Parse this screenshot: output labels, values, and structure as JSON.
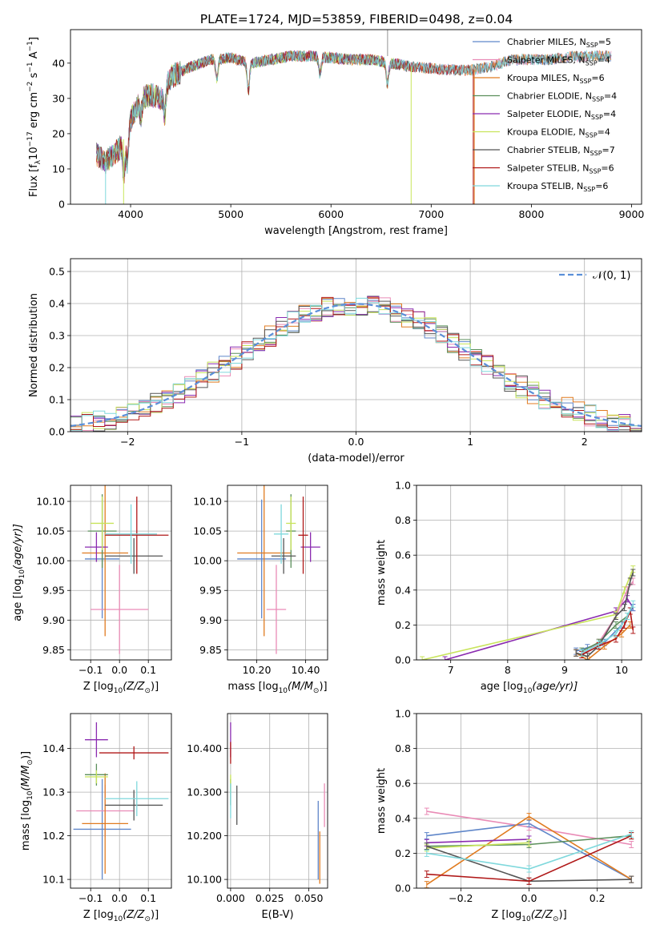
{
  "figure_title": "PLATE=1724, MJD=53859, FIBERID=0498, z=0.04",
  "colors": {
    "chabrier_miles": "#5f86c9",
    "salpeter_miles": "#e98bb6",
    "kroupa_miles": "#e07b20",
    "chabrier_elodie": "#5b8f5b",
    "salpeter_elodie": "#8a2bb0",
    "kroupa_elodie": "#c8e45a",
    "chabrier_stelib": "#555555",
    "salpeter_stelib": "#b01818",
    "kroupa_stelib": "#7fd8dc",
    "gaussian": "#5b8fd8",
    "grid": "#b0b0b0"
  },
  "chart_data": [
    {
      "id": "spectrum",
      "type": "line",
      "xlabel": "wavelength [Angstrom, rest frame]",
      "ylabel": "Flux [f",
      "ylabel_sub": "λ",
      "ylabel_rest": "10",
      "ylabel_sup1": "−17",
      "ylabel_mid": " erg cm",
      "ylabel_sup2": "−2",
      "ylabel_mid2": " s",
      "ylabel_sup3": "−1",
      "ylabel_end": " A",
      "ylabel_sup4": "−1",
      "ylabel_close": "]",
      "xlim": [
        3400,
        9100
      ],
      "ylim": [
        0,
        49.5
      ],
      "xticks": [
        4000,
        5000,
        6000,
        7000,
        8000,
        9000
      ],
      "yticks": [
        0,
        10,
        20,
        30,
        40
      ],
      "continuum": [
        [
          3660,
          14
        ],
        [
          3750,
          12
        ],
        [
          3900,
          16
        ],
        [
          4000,
          24
        ],
        [
          4100,
          30
        ],
        [
          4200,
          31
        ],
        [
          4300,
          30
        ],
        [
          4400,
          36
        ],
        [
          4600,
          39
        ],
        [
          4800,
          41
        ],
        [
          5000,
          41.5
        ],
        [
          5200,
          40
        ],
        [
          5400,
          41
        ],
        [
          5600,
          42
        ],
        [
          5800,
          42
        ],
        [
          6000,
          41.5
        ],
        [
          6200,
          41
        ],
        [
          6400,
          41
        ],
        [
          6600,
          40
        ],
        [
          6800,
          39
        ],
        [
          7000,
          38.5
        ],
        [
          7200,
          38
        ],
        [
          7400,
          38
        ],
        [
          7600,
          39
        ],
        [
          7700,
          40
        ],
        [
          7800,
          41
        ],
        [
          8000,
          41
        ],
        [
          8200,
          41
        ],
        [
          8400,
          42
        ],
        [
          8600,
          42
        ],
        [
          8800,
          42
        ]
      ],
      "legend": [
        {
          "label": "Chabrier MILES, N",
          "sub": "SSP",
          "suffix": "=5",
          "color_key": "chabrier_miles"
        },
        {
          "label": "Salpeter MILES, N",
          "sub": "SSP",
          "suffix": "=4",
          "color_key": "salpeter_miles"
        },
        {
          "label": "Kroupa MILES, N",
          "sub": "SSP",
          "suffix": "=6",
          "color_key": "kroupa_miles"
        },
        {
          "label": "Chabrier ELODIE, N",
          "sub": "SSP",
          "suffix": "=4",
          "color_key": "chabrier_elodie"
        },
        {
          "label": "Salpeter ELODIE, N",
          "sub": "SSP",
          "suffix": "=4",
          "color_key": "salpeter_elodie"
        },
        {
          "label": "Kroupa ELODIE, N",
          "sub": "SSP",
          "suffix": "=4",
          "color_key": "kroupa_elodie"
        },
        {
          "label": "Chabrier STELIB, N",
          "sub": "SSP",
          "suffix": "=7",
          "color_key": "chabrier_stelib"
        },
        {
          "label": "Salpeter STELIB, N",
          "sub": "SSP",
          "suffix": "=6",
          "color_key": "salpeter_stelib"
        },
        {
          "label": "Kroupa STELIB, N",
          "sub": "SSP",
          "suffix": "=6",
          "color_key": "kroupa_stelib"
        }
      ]
    },
    {
      "id": "residuals",
      "type": "line",
      "xlabel": "(data-model)/error",
      "ylabel": "Normed distribution",
      "xlim": [
        -2.5,
        2.5
      ],
      "ylim": [
        0,
        0.54
      ],
      "xticks": [
        -2,
        -1,
        0,
        1,
        2
      ],
      "yticks": [
        0.0,
        0.1,
        0.2,
        0.3,
        0.4,
        0.5
      ],
      "bin_width": 0.1,
      "legend": [
        {
          "label": "𝒩(0, 1)",
          "color_key": "gaussian"
        }
      ]
    },
    {
      "id": "age_vs_Z",
      "type": "scatter",
      "xlabel": "Z [log",
      "xlabel_sub": "10",
      "xlabel_rest": "(Z/Z",
      "xlabel_sub2": "⊙",
      "xlabel_close": ")]",
      "ylabel": "age  [log",
      "ylabel_sub": "10",
      "ylabel_rest": "(age/yr)]",
      "xlim": [
        -0.17,
        0.18
      ],
      "ylim": [
        9.833,
        10.127
      ],
      "xticks": [
        -0.1,
        0.0,
        0.1
      ],
      "yticks": [
        9.85,
        9.9,
        9.95,
        10.0,
        10.05,
        10.1
      ],
      "points": [
        {
          "color_key": "chabrier_miles",
          "x": -0.06,
          "y": 10.003,
          "xerr": 0.06,
          "yerr": 0.1
        },
        {
          "color_key": "salpeter_miles",
          "x": 0.0,
          "y": 9.918,
          "xerr": 0.1,
          "yerr": 0.075
        },
        {
          "color_key": "kroupa_miles",
          "x": -0.05,
          "y": 10.013,
          "xerr": 0.08,
          "yerr": 0.14
        },
        {
          "color_key": "chabrier_elodie",
          "x": -0.06,
          "y": 10.05,
          "xerr": 0.05,
          "yerr": 0.062
        },
        {
          "color_key": "salpeter_elodie",
          "x": -0.08,
          "y": 10.023,
          "xerr": 0.04,
          "yerr": 0.025
        },
        {
          "color_key": "kroupa_elodie",
          "x": -0.06,
          "y": 10.063,
          "xerr": 0.04,
          "yerr": 0.045
        },
        {
          "color_key": "chabrier_stelib",
          "x": 0.05,
          "y": 10.008,
          "xerr": 0.1,
          "yerr": 0.03
        },
        {
          "color_key": "salpeter_stelib",
          "x": 0.06,
          "y": 10.043,
          "xerr": 0.11,
          "yerr": 0.065
        },
        {
          "color_key": "kroupa_stelib",
          "x": 0.04,
          "y": 10.045,
          "xerr": 0.09,
          "yerr": 0.05
        }
      ]
    },
    {
      "id": "age_vs_mass",
      "type": "scatter",
      "xlabel": "mass [log",
      "xlabel_sub": "10",
      "xlabel_rest": "(M/M",
      "xlabel_sub2": "⊙",
      "xlabel_close": ")]",
      "ylabel": "",
      "xlim": [
        10.08,
        10.49
      ],
      "ylim": [
        9.833,
        10.127
      ],
      "xticks": [
        10.2,
        10.4
      ],
      "yticks": [
        9.85,
        9.9,
        9.95,
        10.0,
        10.05,
        10.1
      ],
      "points": [
        {
          "color_key": "chabrier_miles",
          "x": 10.22,
          "y": 10.003,
          "xerr": 0.1,
          "yerr": 0.1
        },
        {
          "color_key": "salpeter_miles",
          "x": 10.28,
          "y": 9.918,
          "xerr": 0.04,
          "yerr": 0.075
        },
        {
          "color_key": "kroupa_miles",
          "x": 10.23,
          "y": 10.013,
          "xerr": 0.11,
          "yerr": 0.14
        },
        {
          "color_key": "chabrier_elodie",
          "x": 10.34,
          "y": 10.05,
          "xerr": 0.02,
          "yerr": 0.062
        },
        {
          "color_key": "salpeter_elodie",
          "x": 10.42,
          "y": 10.023,
          "xerr": 0.04,
          "yerr": 0.025
        },
        {
          "color_key": "kroupa_elodie",
          "x": 10.34,
          "y": 10.063,
          "xerr": 0.02,
          "yerr": 0.045
        },
        {
          "color_key": "chabrier_stelib",
          "x": 10.31,
          "y": 10.008,
          "xerr": 0.05,
          "yerr": 0.03
        },
        {
          "color_key": "salpeter_stelib",
          "x": 10.39,
          "y": 10.043,
          "xerr": 0.02,
          "yerr": 0.065
        },
        {
          "color_key": "kroupa_stelib",
          "x": 10.3,
          "y": 10.045,
          "xerr": 0.03,
          "yerr": 0.05
        }
      ]
    },
    {
      "id": "weights_vs_age",
      "type": "line",
      "xlabel": "age  [log",
      "xlabel_sub": "10",
      "xlabel_rest": "(age/yr)]",
      "ylabel": "mass weight",
      "xlim": [
        6.4,
        10.35
      ],
      "ylim": [
        0,
        1
      ],
      "xticks": [
        7,
        8,
        9,
        10
      ],
      "yticks": [
        0.0,
        0.2,
        0.4,
        0.6,
        0.8,
        1.0
      ],
      "series": [
        {
          "color_key": "salpeter_elodie",
          "x": [
            6.9,
            9.9,
            10.1,
            10.2
          ],
          "y": [
            0.0,
            0.28,
            0.35,
            0.3
          ]
        },
        {
          "color_key": "kroupa_elodie",
          "x": [
            6.5,
            9.9,
            10.05,
            10.2
          ],
          "y": [
            0.0,
            0.26,
            0.4,
            0.52
          ]
        },
        {
          "color_key": "chabrier_miles",
          "x": [
            9.2,
            9.4,
            9.7,
            10.0,
            10.2
          ],
          "y": [
            0.05,
            0.07,
            0.1,
            0.2,
            0.3
          ]
        },
        {
          "color_key": "salpeter_miles",
          "x": [
            9.3,
            9.6,
            9.9,
            10.1,
            10.2
          ],
          "y": [
            0.03,
            0.1,
            0.25,
            0.4,
            0.45
          ]
        },
        {
          "color_key": "kroupa_miles",
          "x": [
            9.2,
            9.4,
            9.7,
            10.0,
            10.15
          ],
          "y": [
            0.04,
            0.0,
            0.08,
            0.15,
            0.2
          ]
        },
        {
          "color_key": "chabrier_elodie",
          "x": [
            9.3,
            9.6,
            9.9,
            10.1
          ],
          "y": [
            0.05,
            0.1,
            0.2,
            0.25
          ]
        },
        {
          "color_key": "chabrier_stelib",
          "x": [
            9.2,
            9.4,
            9.6,
            9.9,
            10.05,
            10.15,
            10.2
          ],
          "y": [
            0.04,
            0.02,
            0.08,
            0.25,
            0.3,
            0.45,
            0.5
          ]
        },
        {
          "color_key": "salpeter_stelib",
          "x": [
            9.3,
            9.6,
            9.9,
            10.05,
            10.15,
            10.2
          ],
          "y": [
            0.03,
            0.08,
            0.12,
            0.2,
            0.28,
            0.17
          ]
        },
        {
          "color_key": "kroupa_stelib",
          "x": [
            9.3,
            9.6,
            9.9,
            10.1,
            10.2
          ],
          "y": [
            0.04,
            0.09,
            0.15,
            0.25,
            0.32
          ]
        }
      ]
    },
    {
      "id": "mass_vs_Z",
      "type": "scatter",
      "xlabel": "Z [log",
      "xlabel_sub": "10",
      "xlabel_rest": "(Z/Z",
      "xlabel_sub2": "⊙",
      "xlabel_close": ")]",
      "ylabel": "mass [log",
      "ylabel_sub": "10",
      "ylabel_rest": "(M/M",
      "ylabel_sub2": "⊙",
      "ylabel_close": ")]",
      "xlim": [
        -0.17,
        0.18
      ],
      "ylim": [
        10.08,
        10.48
      ],
      "xticks": [
        -0.1,
        0.0,
        0.1
      ],
      "yticks": [
        10.1,
        10.2,
        10.3,
        10.4
      ],
      "points": [
        {
          "color_key": "chabrier_miles",
          "x": -0.06,
          "y": 10.215,
          "xerr": 0.1,
          "yerr": 0.115
        },
        {
          "color_key": "salpeter_miles",
          "x": -0.05,
          "y": 10.257,
          "xerr": 0.1,
          "yerr": 0.06
        },
        {
          "color_key": "kroupa_miles",
          "x": -0.05,
          "y": 10.228,
          "xerr": 0.08,
          "yerr": 0.115
        },
        {
          "color_key": "chabrier_elodie",
          "x": -0.08,
          "y": 10.34,
          "xerr": 0.04,
          "yerr": 0.025
        },
        {
          "color_key": "salpeter_elodie",
          "x": -0.08,
          "y": 10.42,
          "xerr": 0.04,
          "yerr": 0.04
        },
        {
          "color_key": "kroupa_elodie",
          "x": -0.08,
          "y": 10.335,
          "xerr": 0.04,
          "yerr": 0.015
        },
        {
          "color_key": "chabrier_stelib",
          "x": 0.05,
          "y": 10.27,
          "xerr": 0.1,
          "yerr": 0.035
        },
        {
          "color_key": "salpeter_stelib",
          "x": 0.05,
          "y": 10.39,
          "xerr": 0.12,
          "yerr": 0.015
        },
        {
          "color_key": "kroupa_stelib",
          "x": 0.06,
          "y": 10.285,
          "xerr": 0.11,
          "yerr": 0.04
        }
      ]
    },
    {
      "id": "mass_vs_ebv",
      "type": "scatter",
      "xlabel": "E(B-V)",
      "ylabel": "",
      "xlim": [
        -0.002,
        0.062
      ],
      "ylim": [
        10.08,
        10.48
      ],
      "xticks": [
        0.0,
        0.025,
        0.05
      ],
      "yticks": [
        10.1,
        10.2,
        10.3,
        10.4
      ],
      "points": [
        {
          "color_key": "chabrier_miles",
          "x": 0.056,
          "y": 10.19,
          "xerr": 0.0,
          "yerr": 0.09
        },
        {
          "color_key": "salpeter_miles",
          "x": 0.06,
          "y": 10.27,
          "xerr": 0.0,
          "yerr": 0.05
        },
        {
          "color_key": "kroupa_miles",
          "x": 0.057,
          "y": 10.15,
          "xerr": 0.0,
          "yerr": 0.06
        },
        {
          "color_key": "chabrier_elodie",
          "x": 0.0,
          "y": 10.3,
          "xerr": 0.0,
          "yerr": 0.03
        },
        {
          "color_key": "salpeter_elodie",
          "x": 0.0,
          "y": 10.42,
          "xerr": 0.0,
          "yerr": 0.04
        },
        {
          "color_key": "kroupa_elodie",
          "x": 0.0,
          "y": 10.32,
          "xerr": 0.0,
          "yerr": 0.02
        },
        {
          "color_key": "chabrier_stelib",
          "x": 0.004,
          "y": 10.27,
          "xerr": 0.0,
          "yerr": 0.045
        },
        {
          "color_key": "salpeter_stelib",
          "x": 0.0,
          "y": 10.39,
          "xerr": 0.0,
          "yerr": 0.025
        },
        {
          "color_key": "kroupa_stelib",
          "x": 0.0,
          "y": 10.28,
          "xerr": 0.0,
          "yerr": 0.04
        }
      ]
    },
    {
      "id": "weights_vs_Z",
      "type": "line",
      "xlabel": "Z [log",
      "xlabel_sub": "10",
      "xlabel_rest": "(Z/Z",
      "xlabel_sub2": "⊙",
      "xlabel_close": ")]",
      "ylabel": "mass weight",
      "xlim": [
        -0.33,
        0.33
      ],
      "ylim": [
        0,
        1
      ],
      "xticks": [
        -0.2,
        0.0,
        0.2
      ],
      "yticks": [
        0.0,
        0.2,
        0.4,
        0.6,
        0.8,
        1.0
      ],
      "series": [
        {
          "color_key": "salpeter_miles",
          "x": [
            -0.3,
            0.0,
            0.3
          ],
          "y": [
            0.44,
            0.35,
            0.25
          ]
        },
        {
          "color_key": "chabrier_miles",
          "x": [
            -0.3,
            0.0,
            0.3
          ],
          "y": [
            0.3,
            0.37,
            0.05
          ]
        },
        {
          "color_key": "kroupa_miles",
          "x": [
            -0.3,
            0.0,
            0.3
          ],
          "y": [
            0.02,
            0.41,
            0.05
          ]
        },
        {
          "color_key": "chabrier_elodie",
          "x": [
            -0.3,
            0.0,
            0.3
          ],
          "y": [
            0.24,
            0.25,
            0.3
          ]
        },
        {
          "color_key": "salpeter_elodie",
          "x": [
            -0.3,
            0.0
          ],
          "y": [
            0.26,
            0.28
          ]
        },
        {
          "color_key": "kroupa_elodie",
          "x": [
            -0.3,
            0.0
          ],
          "y": [
            0.23,
            0.26
          ]
        },
        {
          "color_key": "chabrier_stelib",
          "x": [
            -0.3,
            0.0,
            0.3
          ],
          "y": [
            0.24,
            0.04,
            0.05
          ]
        },
        {
          "color_key": "salpeter_stelib",
          "x": [
            -0.3,
            0.0,
            0.3
          ],
          "y": [
            0.08,
            0.04,
            0.3
          ]
        },
        {
          "color_key": "kroupa_stelib",
          "x": [
            -0.3,
            0.0,
            0.3
          ],
          "y": [
            0.2,
            0.11,
            0.31
          ]
        }
      ]
    }
  ]
}
